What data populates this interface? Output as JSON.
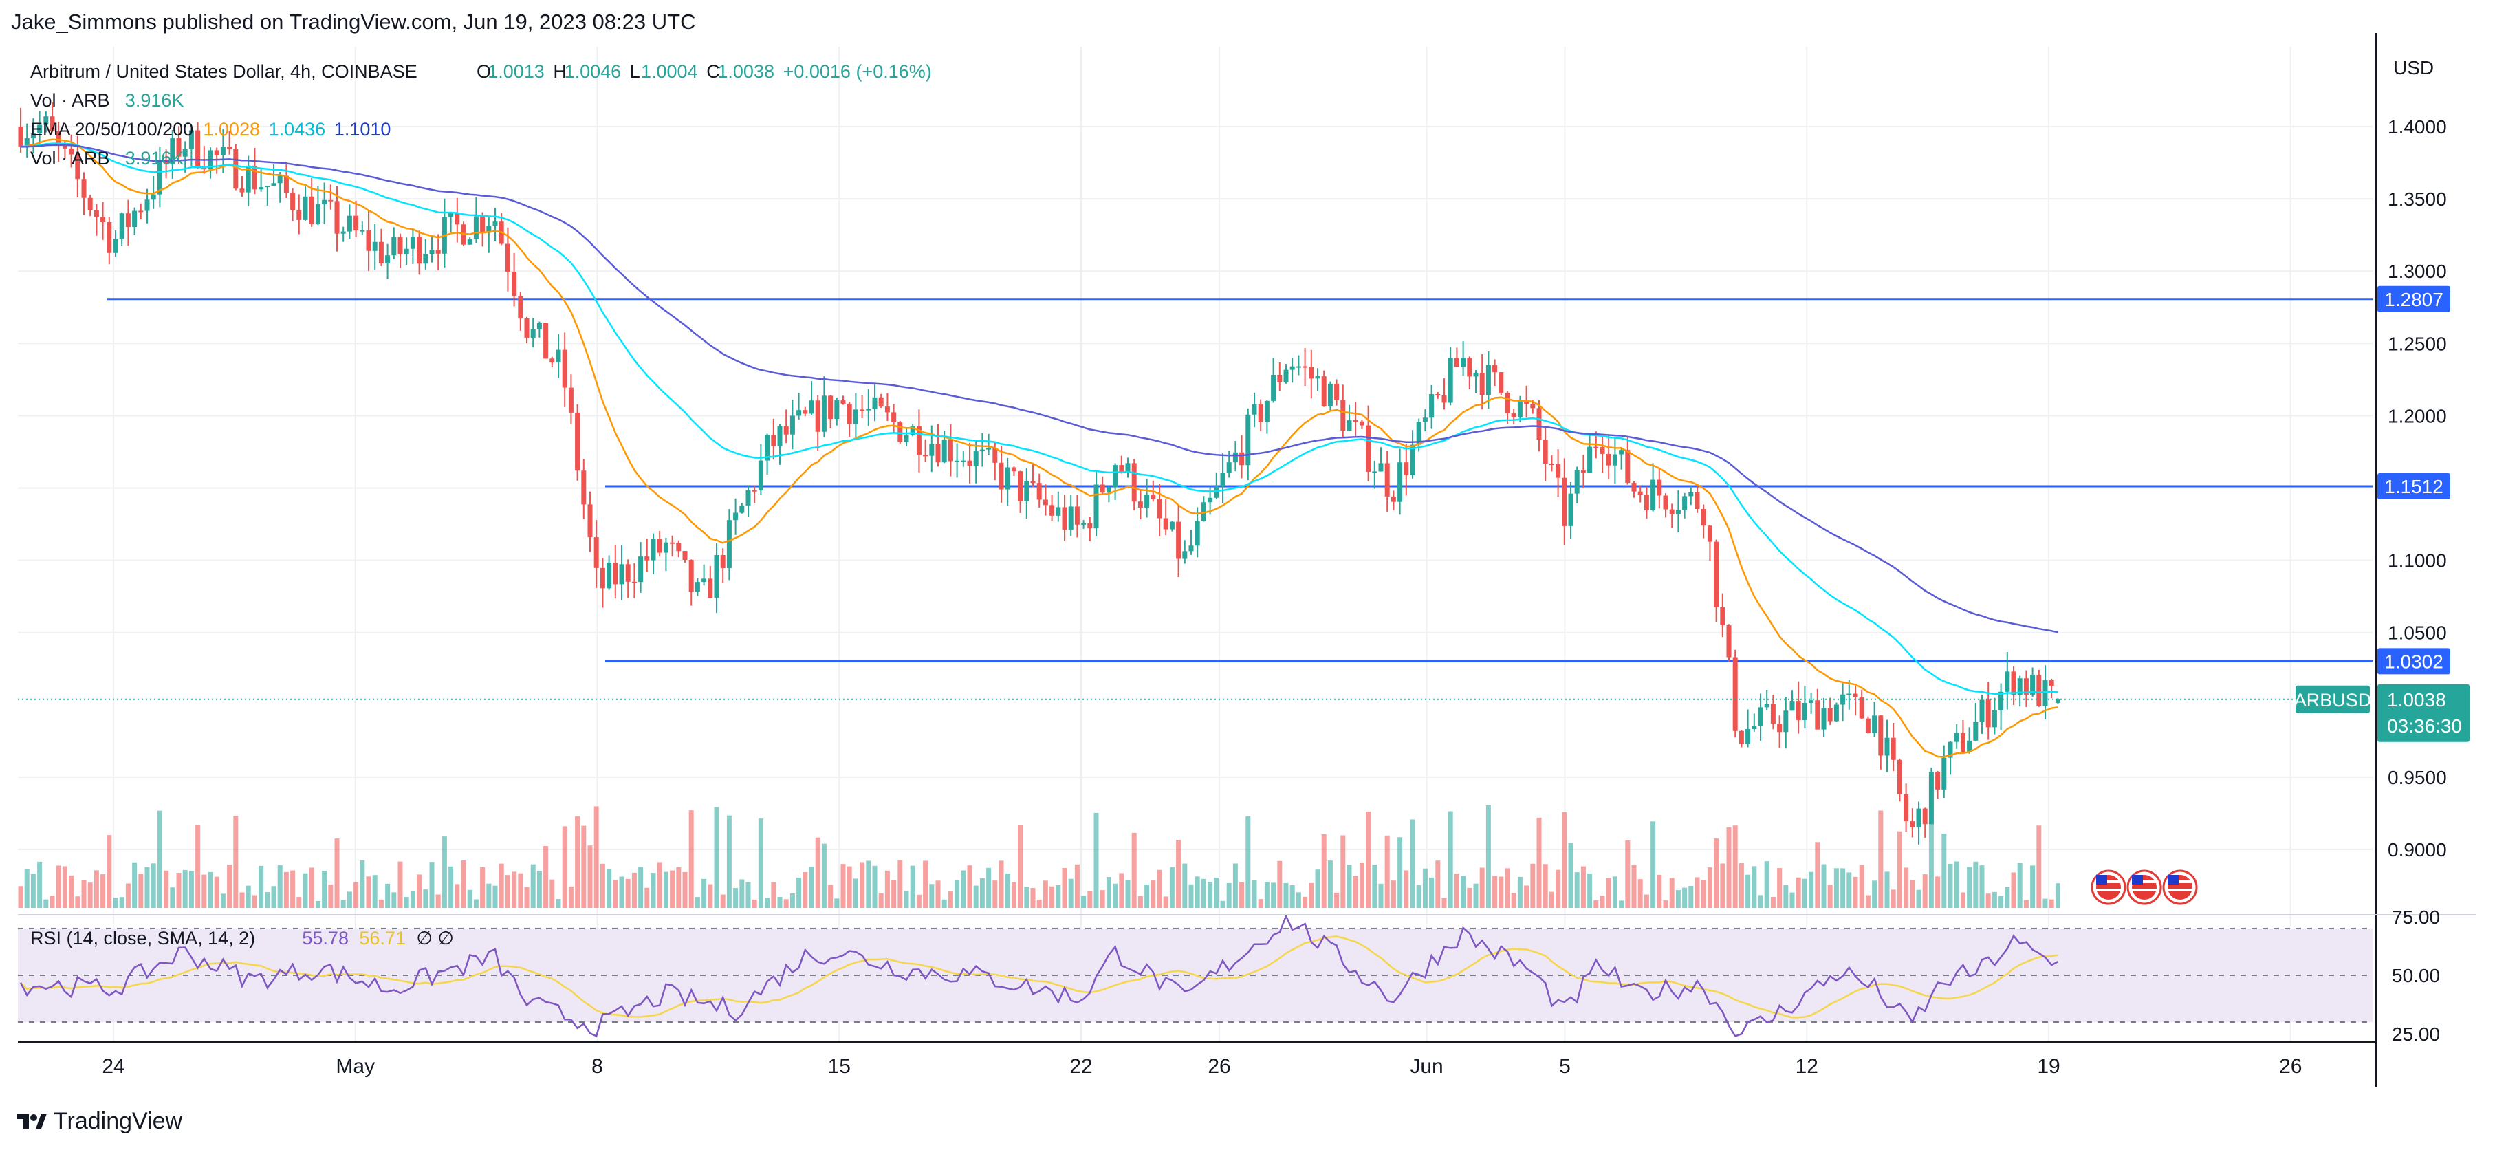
{
  "publisher_line": "Jake_Simmons published on TradingView.com, Jun 19, 2023 08:23 UTC",
  "brand": "TradingView",
  "legend": {
    "symbol": "Arbitrum / United States Dollar, 4h, COINBASE",
    "o_label": "O",
    "o": "1.0013",
    "h_label": "H",
    "h": "1.0046",
    "l_label": "L",
    "l": "1.0004",
    "c_label": "C",
    "c": "1.0038",
    "change": "+0.0016 (+0.16%)",
    "vol_label": "Vol · ARB",
    "vol_value": "3.916K",
    "ema_label": "EMA 20/50/100/200",
    "ema_values": [
      "1.0028",
      "1.0436",
      "1.1010"
    ],
    "vol2_label": "Vol · ARB",
    "vol2_value": "3.916K",
    "rsi_label": "RSI (14, close, SMA, 14, 2)",
    "rsi_value": "55.78",
    "rsi_sma_value": "56.71",
    "rsi_extra": "∅ ∅"
  },
  "colors": {
    "up": "#26a69a",
    "down": "#ef5350",
    "ema20": "#ff9800",
    "ema50": "#00e5ff",
    "ema100": "#1e3bcc",
    "ema200": "#5b5bd6",
    "hline": "#2962ff",
    "rsi": "#7e57c2",
    "rsi_sma": "#f6d64a",
    "rsi_band": "#ede7f6",
    "grid": "#eef0f3",
    "text": "#131722",
    "axis": "#8a8f99"
  },
  "chart_data": [
    {
      "type": "candlestick",
      "symbol": "ARBUSD",
      "currency_label": "USD",
      "price_ticks": [
        "1.4000",
        "1.3500",
        "1.3000",
        "1.2500",
        "1.2000",
        "1.1500",
        "1.1000",
        "1.0500",
        "0.9500",
        "0.9000"
      ],
      "ylim": [
        0.87,
        1.465
      ],
      "x_tick_labels": [
        "24",
        "May",
        "8",
        "15",
        "22",
        "26",
        "Jun",
        "5",
        "12",
        "19",
        "26"
      ],
      "horizontal_levels": [
        {
          "value": 1.2807,
          "label": "1.2807",
          "from_date": "Apr 24"
        },
        {
          "value": 1.1512,
          "label": "1.1512",
          "from_date": "May 8"
        },
        {
          "value": 1.0302,
          "label": "1.0302",
          "from_date": "May 8"
        }
      ],
      "last_price": {
        "value": 1.0038,
        "label": "1.0038",
        "symbol": "ARBUSD",
        "countdown": "03:36:30"
      },
      "ohlc_4h_approx": {
        "dates_start": "Apr 24",
        "interval": "4h",
        "keypoints_close": [
          [
            "Apr 22",
            1.4
          ],
          [
            "Apr 24",
            1.32
          ],
          [
            "Apr 26",
            1.39
          ],
          [
            "Apr 30",
            1.34
          ],
          [
            "May 2",
            1.31
          ],
          [
            "May 5",
            1.34
          ],
          [
            "May 6",
            1.26
          ],
          [
            "May 7",
            1.23
          ],
          [
            "May 8",
            1.08
          ],
          [
            "May 10",
            1.11
          ],
          [
            "May 11",
            1.07
          ],
          [
            "May 13",
            1.18
          ],
          [
            "May 15",
            1.21
          ],
          [
            "May 17",
            1.19
          ],
          [
            "May 19",
            1.17
          ],
          [
            "May 22",
            1.12
          ],
          [
            "May 23",
            1.17
          ],
          [
            "May 25",
            1.1
          ],
          [
            "May 26",
            1.15
          ],
          [
            "May 28",
            1.24
          ],
          [
            "May 29",
            1.22
          ],
          [
            "May 31",
            1.15
          ],
          [
            "Jun 2",
            1.24
          ],
          [
            "Jun 4",
            1.2
          ],
          [
            "Jun 5",
            1.13
          ],
          [
            "Jun 6",
            1.19
          ],
          [
            "Jun 7",
            1.15
          ],
          [
            "Jun 9",
            1.14
          ],
          [
            "Jun 10",
            0.98
          ],
          [
            "Jun 11",
            0.99
          ],
          [
            "Jun 13",
            1.0
          ],
          [
            "Jun 14",
            0.99
          ],
          [
            "Jun 15",
            0.91
          ],
          [
            "Jun 16",
            0.96
          ],
          [
            "Jun 17",
            0.99
          ],
          [
            "Jun 18",
            1.02
          ],
          [
            "Jun 19",
            1.0038
          ]
        ]
      },
      "ema": [
        {
          "name": "EMA 20",
          "last": 1.0028
        },
        {
          "name": "EMA 50",
          "last": 1.0436
        },
        {
          "name": "EMA 100",
          "last": 1.101
        }
      ],
      "volume": {
        "name": "Vol · ARB",
        "last": "3.916K"
      }
    },
    {
      "type": "line",
      "name": "RSI (14, close, SMA, 14, 2)",
      "ylim": [
        25,
        75
      ],
      "ticks": [
        "75.00",
        "50.00",
        "25.00"
      ],
      "bands": [
        30,
        50,
        70
      ],
      "series": [
        {
          "name": "RSI",
          "last": 55.78,
          "keypoints": [
            [
              "Apr 22",
              46
            ],
            [
              "Apr 24",
              44
            ],
            [
              "Apr 26",
              60
            ],
            [
              "Apr 28",
              48
            ],
            [
              "Apr 30",
              53
            ],
            [
              "May 2",
              44
            ],
            [
              "May 5",
              58
            ],
            [
              "May 6",
              38
            ],
            [
              "May 8",
              28
            ],
            [
              "May 10",
              42
            ],
            [
              "May 12",
              35
            ],
            [
              "May 14",
              58
            ],
            [
              "May 15",
              60
            ],
            [
              "May 17",
              52
            ],
            [
              "May 19",
              50
            ],
            [
              "May 22",
              40
            ],
            [
              "May 23",
              60
            ],
            [
              "May 25",
              40
            ],
            [
              "May 26",
              52
            ],
            [
              "May 28",
              74
            ],
            [
              "May 29",
              63
            ],
            [
              "May 31",
              40
            ],
            [
              "Jun 2",
              68
            ],
            [
              "Jun 4",
              52
            ],
            [
              "Jun 5",
              34
            ],
            [
              "Jun 6",
              55
            ],
            [
              "Jun 7",
              42
            ],
            [
              "Jun 9",
              46
            ],
            [
              "Jun 10",
              25
            ],
            [
              "Jun 11",
              32
            ],
            [
              "Jun 13",
              52
            ],
            [
              "Jun 14",
              44
            ],
            [
              "Jun 15",
              29
            ],
            [
              "Jun 16",
              48
            ],
            [
              "Jun 17",
              52
            ],
            [
              "Jun 18",
              64
            ],
            [
              "Jun 19",
              55.78
            ]
          ]
        },
        {
          "name": "RSI SMA",
          "last": 56.71
        }
      ]
    }
  ]
}
